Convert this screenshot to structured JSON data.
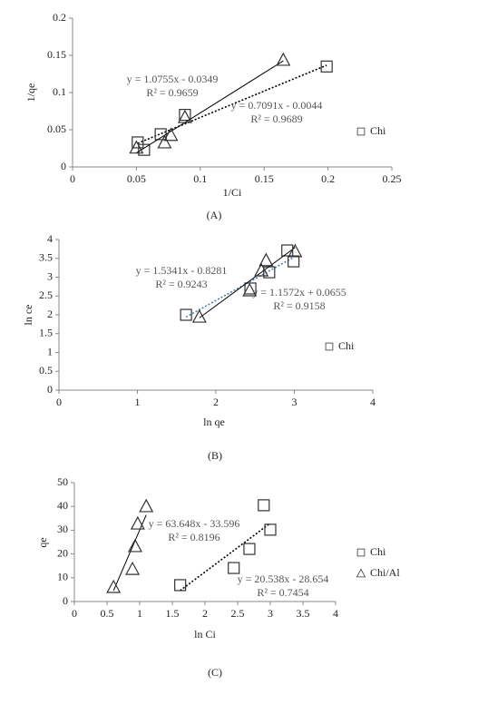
{
  "chart_data": [
    {
      "type": "scatter",
      "caption": "(A)",
      "x_label": "1/Ci",
      "y_label": "1/qe",
      "xlim": [
        0,
        0.25
      ],
      "xticks": [
        0,
        0.05,
        0.1,
        0.15,
        0.2,
        0.25
      ],
      "ylim": [
        0,
        0.2
      ],
      "yticks": [
        0,
        0.05,
        0.1,
        0.15,
        0.2
      ],
      "series": [
        {
          "name": "Chi",
          "marker": "square",
          "color": "#333333",
          "x": [
            0.051,
            0.056,
            0.069,
            0.088,
            0.199
          ],
          "values": [
            0.033,
            0.023,
            0.044,
            0.07,
            0.135
          ],
          "trendline": {
            "slope": 0.7091,
            "intercept": -0.0044,
            "style": "dotted",
            "color": "#000000",
            "equation": "y = 0.7091x - 0.0044",
            "r2": "R² = 0.9689"
          }
        },
        {
          "marker": "triangle",
          "color": "#333333",
          "x": [
            0.05,
            0.072,
            0.077,
            0.088,
            0.165
          ],
          "values": [
            0.026,
            0.033,
            0.043,
            0.067,
            0.144
          ],
          "trendline": {
            "slope": 1.0755,
            "intercept": -0.0349,
            "style": "solid",
            "color": "#000000",
            "equation": "y = 1.0755x - 0.0349",
            "r2": "R² = 0.9659"
          }
        }
      ]
    },
    {
      "type": "scatter",
      "caption": "(B)",
      "x_label": "ln qe",
      "y_label": "ln ce",
      "xlim": [
        0,
        4
      ],
      "xticks": [
        0,
        1,
        2,
        3,
        4
      ],
      "ylim": [
        0,
        4
      ],
      "yticks": [
        0,
        0.5,
        1,
        1.5,
        2,
        2.5,
        3,
        3.5,
        4
      ],
      "series": [
        {
          "name": "Chi",
          "marker": "square",
          "color": "#333333",
          "x": [
            1.62,
            2.44,
            2.68,
            2.91,
            2.99
          ],
          "values": [
            2.0,
            2.7,
            3.13,
            3.71,
            3.42
          ],
          "trendline": {
            "slope": 1.1572,
            "intercept": 0.0655,
            "style": "dotted",
            "color": "#4a7ebb",
            "equation": "y = 1.1572x + 0.0655",
            "r2": "R² = 0.9158"
          }
        },
        {
          "marker": "triangle",
          "color": "#333333",
          "x": [
            1.79,
            2.43,
            2.58,
            2.64,
            3.01
          ],
          "values": [
            1.95,
            2.65,
            3.18,
            3.45,
            3.69
          ],
          "trendline": {
            "slope": 1.5341,
            "intercept": -0.8281,
            "style": "solid",
            "color": "#000000",
            "equation": "y = 1.5341x - 0.8281",
            "r2": "R² = 0.9243"
          }
        }
      ]
    },
    {
      "type": "scatter",
      "caption": "(C)",
      "x_label": "ln Ci",
      "y_label": "qe",
      "xlim": [
        0,
        4
      ],
      "xticks": [
        0,
        0.5,
        1,
        1.5,
        2,
        2.5,
        3,
        3.5,
        4
      ],
      "ylim": [
        0,
        50
      ],
      "yticks": [
        0,
        10,
        20,
        30,
        40,
        50
      ],
      "series": [
        {
          "name": "Chi",
          "marker": "square",
          "color": "#333333",
          "x": [
            1.62,
            2.44,
            2.68,
            2.9,
            3.0
          ],
          "values": [
            6.9,
            14.1,
            22.1,
            40.5,
            30.2
          ],
          "trendline": {
            "slope": 20.538,
            "intercept": -28.654,
            "style": "dotted",
            "color": "#000000",
            "equation": "y = 20.538x - 28.654",
            "r2": "R² = 0.7454"
          }
        },
        {
          "name": "Chi/Al",
          "marker": "triangle",
          "color": "#333333",
          "x": [
            0.6,
            0.89,
            0.93,
            0.97,
            1.1
          ],
          "values": [
            6.1,
            13.7,
            23.3,
            32.8,
            40.1
          ],
          "trendline": {
            "slope": 63.648,
            "intercept": -33.596,
            "style": "solid",
            "color": "#000000",
            "equation": "y = 63.648x - 33.596",
            "r2": "R² = 0.8196"
          }
        }
      ]
    }
  ]
}
